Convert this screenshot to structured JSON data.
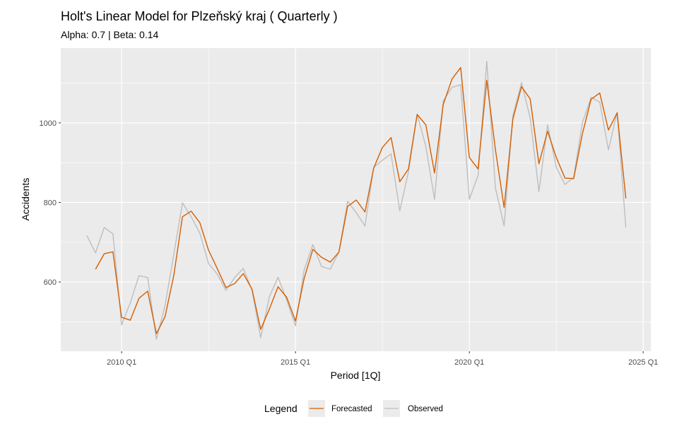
{
  "chart_data": {
    "type": "line",
    "title": "Holt's Linear Model for Plzeňský kraj ( Quarterly )",
    "subtitle": "Alpha: 0.7 | Beta: 0.14",
    "xlabel": "Period [1Q]",
    "ylabel": "Accidents",
    "x_start": "2009 Q1",
    "xlim": [
      2008.25,
      2025.22
    ],
    "ylim": [
      426,
      1188
    ],
    "x_ticks": [
      {
        "value": 2010,
        "label": "2010 Q1"
      },
      {
        "value": 2015,
        "label": "2015 Q1"
      },
      {
        "value": 2020,
        "label": "2020 Q1"
      },
      {
        "value": 2025,
        "label": "2025 Q1"
      }
    ],
    "y_ticks": [
      {
        "value": 600,
        "label": "600"
      },
      {
        "value": 800,
        "label": "800"
      },
      {
        "value": 1000,
        "label": "1000"
      }
    ],
    "grid": true,
    "legend": {
      "title": "Legend",
      "placement": "bottom"
    },
    "series": [
      {
        "name": "Forecasted",
        "color": "#D55E00",
        "start_index": 1,
        "values": [
          632,
          671,
          676,
          511,
          504,
          559,
          577,
          470,
          513,
          616,
          764,
          778,
          749,
          680,
          634,
          586,
          596,
          621,
          582,
          481,
          532,
          588,
          561,
          502,
          609,
          682,
          662,
          650,
          675,
          790,
          806,
          776,
          886,
          938,
          963,
          852,
          884,
          1021,
          995,
          874,
          1046,
          1110,
          1139,
          913,
          884,
          1107,
          932,
          787,
          1009,
          1091,
          1060,
          897,
          979,
          913,
          861,
          860,
          972,
          1059,
          1075,
          982,
          1025,
          810
        ]
      },
      {
        "name": "Observed",
        "color": "#BEBEBE",
        "start_index": 0,
        "values": [
          717,
          673,
          737,
          721,
          492,
          548,
          616,
          611,
          456,
          541,
          669,
          799,
          764,
          723,
          646,
          620,
          579,
          611,
          634,
          580,
          460,
          563,
          612,
          554,
          490,
          630,
          694,
          639,
          632,
          675,
          803,
          774,
          741,
          888,
          906,
          922,
          779,
          877,
          1021,
          941,
          808,
          1055,
          1089,
          1096,
          808,
          868,
          1155,
          836,
          741,
          1018,
          1101,
          1012,
          827,
          995,
          888,
          845,
          863,
          1000,
          1064,
          1052,
          932,
          1027,
          737
        ]
      }
    ]
  }
}
